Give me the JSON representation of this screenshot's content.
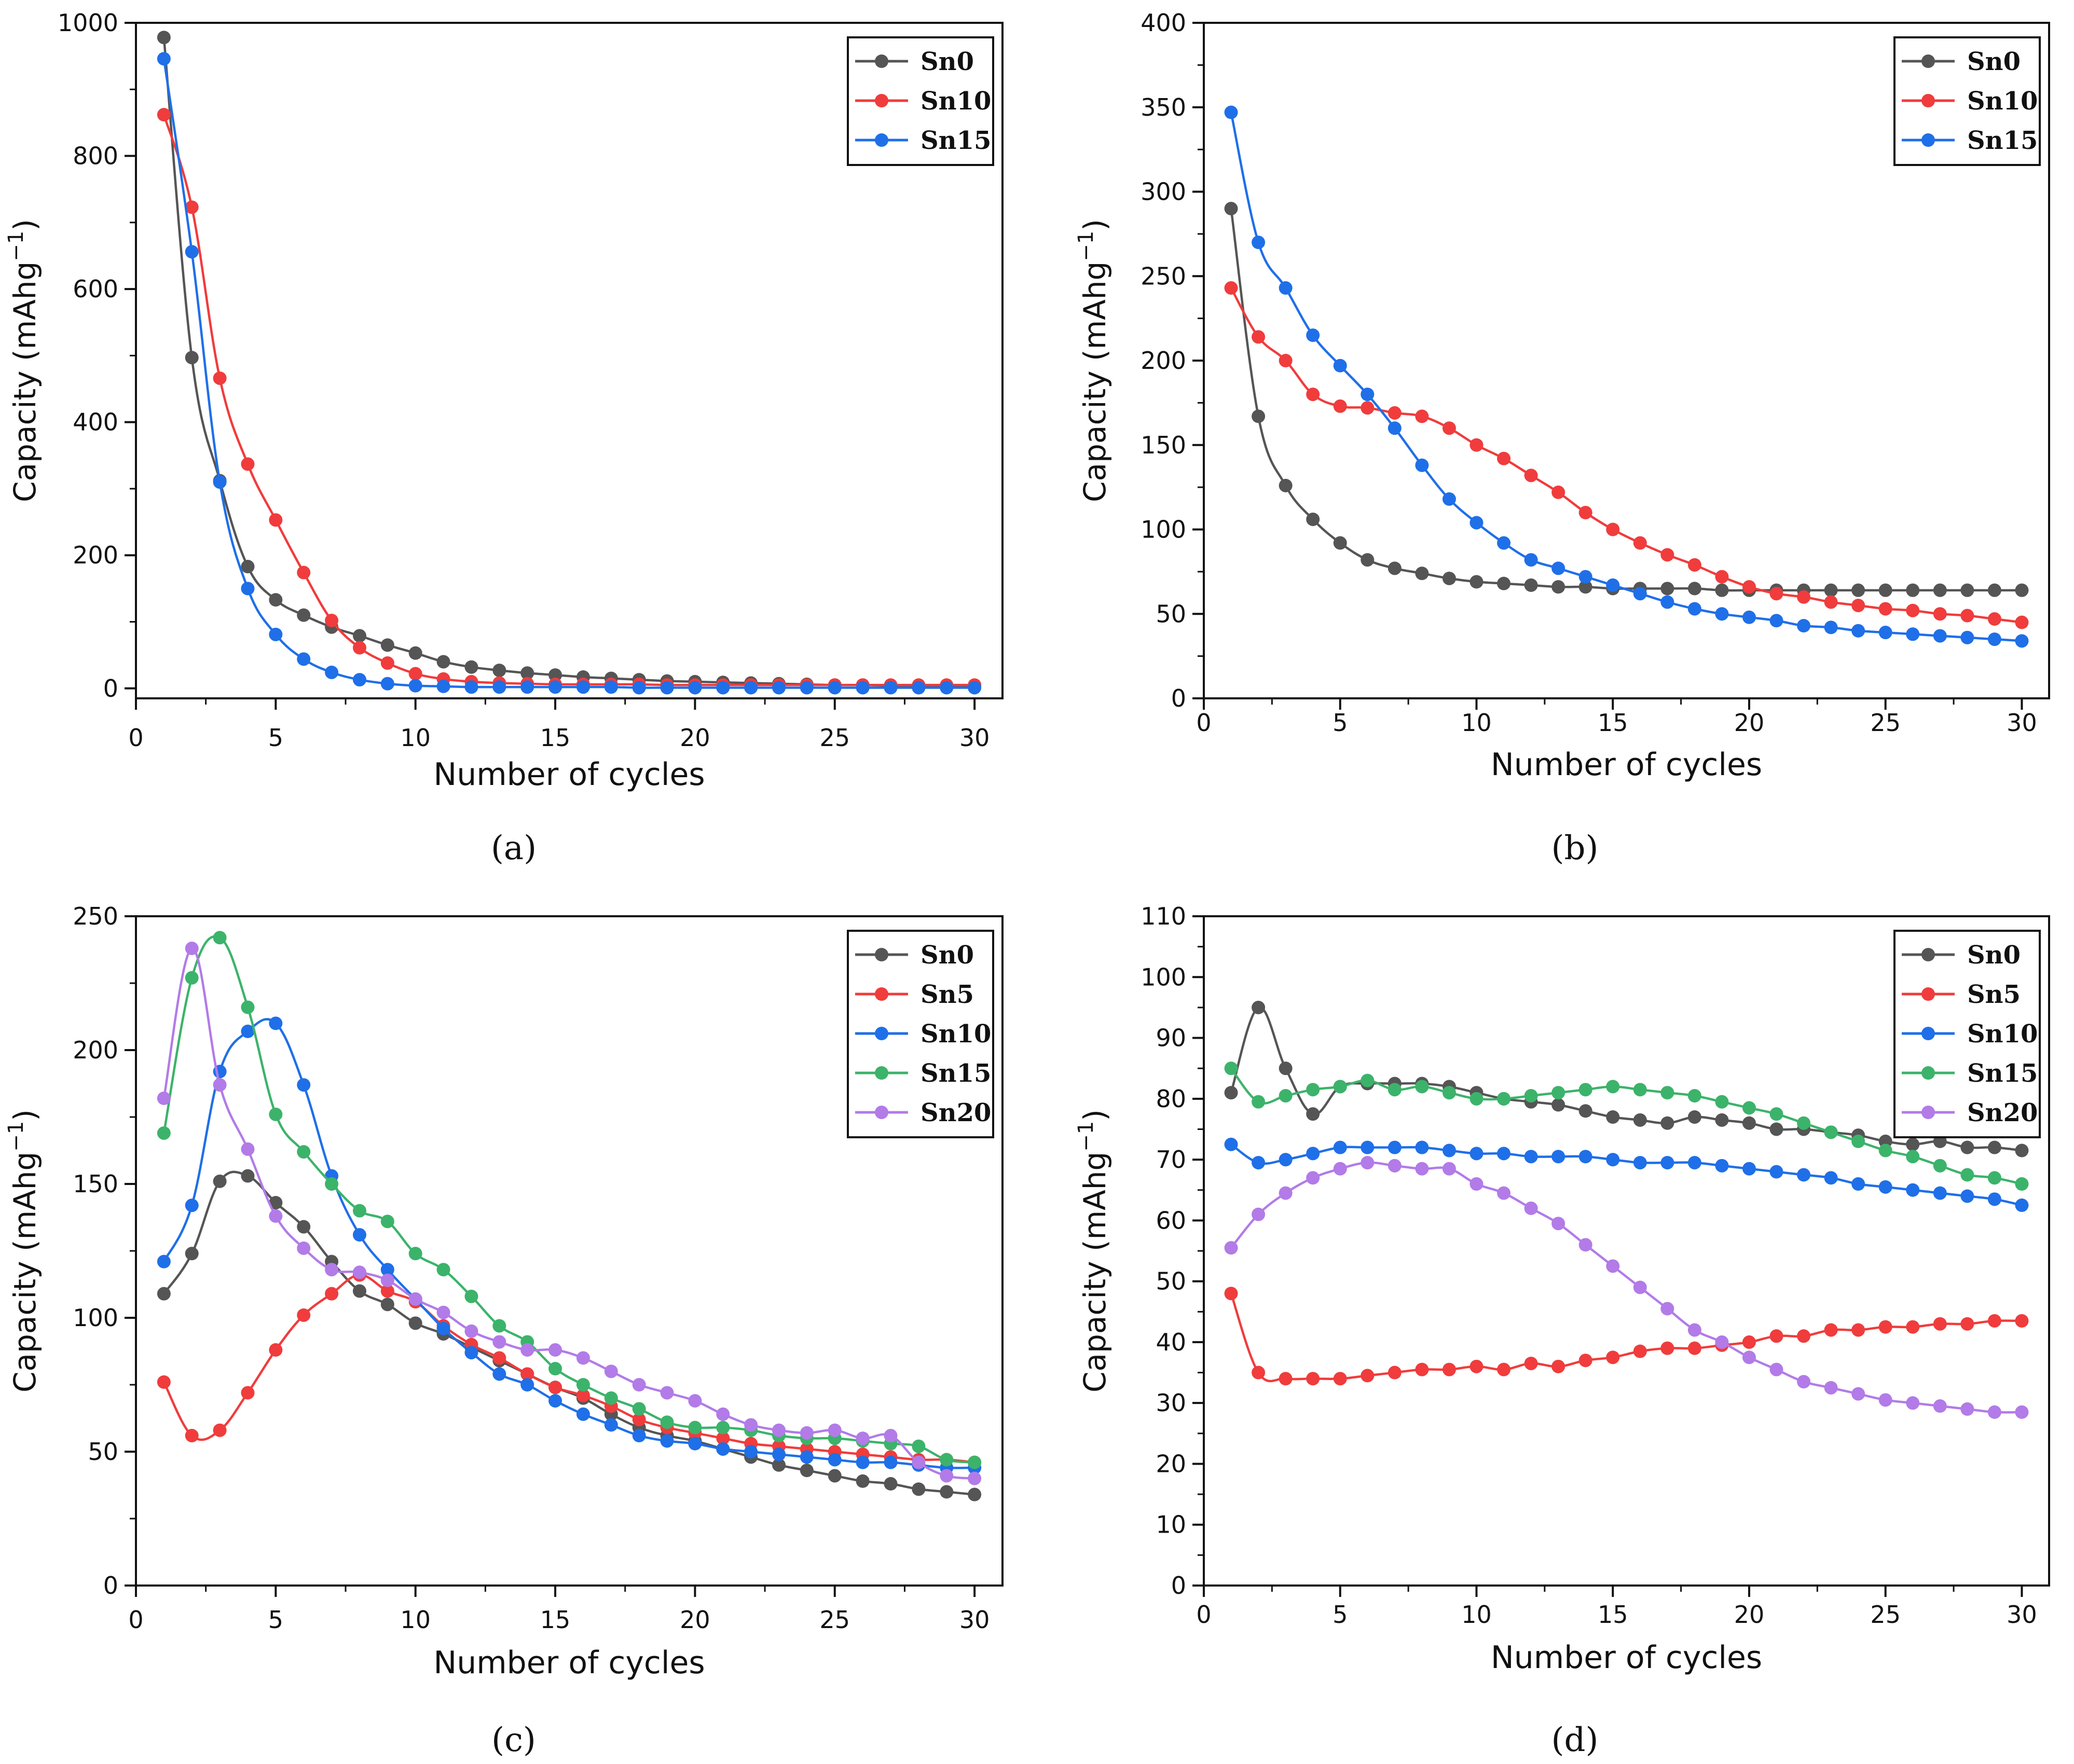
{
  "figure": {
    "panel_labels": [
      "(a)",
      "(b)",
      "(c)",
      "(d)"
    ]
  },
  "chart_data": [
    {
      "id": "a",
      "type": "line",
      "panel_label": "(a)",
      "xlabel": "Number of cycles",
      "ylabel": "Capacity (mAhg",
      "ylabel_sup": "−1",
      "ylabel_close": ")",
      "xlim": [
        0,
        31
      ],
      "ylim": [
        -15,
        1000
      ],
      "xticks": [
        0,
        5,
        10,
        15,
        20,
        25,
        30
      ],
      "yticks": [
        0,
        200,
        400,
        600,
        800,
        1000
      ],
      "legend_position": "top-right",
      "series": [
        {
          "name": "Sn0",
          "color": "#555555",
          "values": [
            978,
            497,
            312,
            183,
            133,
            110,
            92,
            79,
            65,
            53,
            40,
            32,
            27,
            23,
            20,
            17,
            15,
            13,
            11,
            10,
            9,
            8,
            7,
            6,
            5,
            5,
            4,
            4,
            4,
            4
          ]
        },
        {
          "name": "Sn10",
          "color": "#f03c3c",
          "values": [
            862,
            723,
            466,
            337,
            253,
            174,
            102,
            61,
            38,
            22,
            14,
            10,
            8,
            7,
            6,
            6,
            6,
            6,
            5,
            5,
            5,
            5,
            5,
            5,
            5,
            5,
            5,
            5,
            5,
            5
          ]
        },
        {
          "name": "Sn15",
          "color": "#1f6fe8",
          "values": [
            946,
            656,
            310,
            150,
            81,
            44,
            24,
            13,
            7,
            4,
            3,
            2,
            2,
            2,
            2,
            2,
            2,
            1,
            1,
            1,
            1,
            1,
            1,
            1,
            1,
            1,
            1,
            1,
            1,
            1
          ]
        }
      ]
    },
    {
      "id": "b",
      "type": "line",
      "panel_label": "(b)",
      "xlabel": "Number of cycles",
      "ylabel": "Capacity (mAhg",
      "ylabel_sup": "−1",
      "ylabel_close": ")",
      "xlim": [
        0,
        31
      ],
      "ylim": [
        0,
        400
      ],
      "xticks": [
        0,
        5,
        10,
        15,
        20,
        25,
        30
      ],
      "yticks": [
        0,
        50,
        100,
        150,
        200,
        250,
        300,
        350,
        400
      ],
      "legend_position": "top-right",
      "series": [
        {
          "name": "Sn0",
          "color": "#555555",
          "values": [
            290,
            167,
            126,
            106,
            92,
            82,
            77,
            74,
            71,
            69,
            68,
            67,
            66,
            66,
            65,
            65,
            65,
            65,
            64,
            64,
            64,
            64,
            64,
            64,
            64,
            64,
            64,
            64,
            64,
            64
          ]
        },
        {
          "name": "Sn10",
          "color": "#f03c3c",
          "values": [
            243,
            214,
            200,
            180,
            173,
            172,
            169,
            167,
            160,
            150,
            142,
            132,
            122,
            110,
            100,
            92,
            85,
            79,
            72,
            66,
            62,
            60,
            57,
            55,
            53,
            52,
            50,
            49,
            47,
            45
          ]
        },
        {
          "name": "Sn15",
          "color": "#1f6fe8",
          "values": [
            347,
            270,
            243,
            215,
            197,
            180,
            160,
            138,
            118,
            104,
            92,
            82,
            77,
            72,
            67,
            62,
            57,
            53,
            50,
            48,
            46,
            43,
            42,
            40,
            39,
            38,
            37,
            36,
            35,
            34
          ]
        }
      ]
    },
    {
      "id": "c",
      "type": "line",
      "panel_label": "(c)",
      "xlabel": "Number of cycles",
      "ylabel": "Capacity (mAhg",
      "ylabel_sup": "−1",
      "ylabel_close": ")",
      "xlim": [
        0,
        31
      ],
      "ylim": [
        0,
        250
      ],
      "xticks": [
        0,
        5,
        10,
        15,
        20,
        25,
        30
      ],
      "yticks": [
        0,
        50,
        100,
        150,
        200,
        250
      ],
      "legend_position": "top-right",
      "series": [
        {
          "name": "Sn0",
          "color": "#555555",
          "values": [
            109,
            124,
            151,
            153,
            143,
            134,
            121,
            110,
            105,
            98,
            94,
            89,
            84,
            79,
            74,
            70,
            64,
            59,
            56,
            54,
            51,
            48,
            45,
            43,
            41,
            39,
            38,
            36,
            35,
            34
          ]
        },
        {
          "name": "Sn5",
          "color": "#f03c3c",
          "values": [
            76,
            56,
            58,
            72,
            88,
            101,
            109,
            116,
            110,
            106,
            97,
            90,
            85,
            79,
            74,
            71,
            67,
            62,
            59,
            57,
            55,
            53,
            52,
            51,
            50,
            49,
            48,
            47,
            47,
            46
          ]
        },
        {
          "name": "Sn10",
          "color": "#1f6fe8",
          "values": [
            121,
            142,
            192,
            207,
            210,
            187,
            153,
            131,
            118,
            107,
            96,
            87,
            79,
            75,
            69,
            64,
            60,
            56,
            54,
            53,
            51,
            50,
            49,
            48,
            47,
            46,
            46,
            45,
            44,
            44
          ]
        },
        {
          "name": "Sn15",
          "color": "#3cb36a",
          "values": [
            169,
            227,
            242,
            216,
            176,
            162,
            150,
            140,
            136,
            124,
            118,
            108,
            97,
            91,
            81,
            75,
            70,
            66,
            61,
            59,
            59,
            58,
            56,
            55,
            55,
            54,
            53,
            52,
            47,
            46
          ]
        },
        {
          "name": "Sn20",
          "color": "#b27be8",
          "values": [
            182,
            238,
            187,
            163,
            138,
            126,
            118,
            117,
            114,
            107,
            102,
            95,
            91,
            88,
            88,
            85,
            80,
            75,
            72,
            69,
            64,
            60,
            58,
            57,
            58,
            55,
            56,
            46,
            41,
            40
          ]
        }
      ]
    },
    {
      "id": "d",
      "type": "line",
      "panel_label": "(d)",
      "xlabel": "Number of cycles",
      "ylabel": "Capacity (mAhg",
      "ylabel_sup": "−1",
      "ylabel_close": ")",
      "xlim": [
        0,
        31
      ],
      "ylim": [
        0,
        110
      ],
      "xticks": [
        0,
        5,
        10,
        15,
        20,
        25,
        30
      ],
      "yticks": [
        0,
        10,
        20,
        30,
        40,
        50,
        60,
        70,
        80,
        90,
        100,
        110
      ],
      "legend_position": "top-right",
      "series": [
        {
          "name": "Sn0",
          "color": "#555555",
          "values": [
            81,
            95,
            85,
            77.5,
            82,
            82.5,
            82.5,
            82.5,
            82,
            81,
            80,
            79.5,
            79,
            78,
            77,
            76.5,
            76,
            77,
            76.5,
            76,
            75,
            75,
            74.5,
            74,
            73,
            72.5,
            73,
            72,
            72,
            71.5
          ]
        },
        {
          "name": "Sn5",
          "color": "#f03c3c",
          "values": [
            48,
            35,
            34,
            34,
            34,
            34.5,
            35,
            35.5,
            35.5,
            36,
            35.5,
            36.5,
            36,
            37,
            37.5,
            38.5,
            39,
            39,
            39.5,
            40,
            41,
            41,
            42,
            42,
            42.5,
            42.5,
            43,
            43,
            43.5,
            43.5
          ]
        },
        {
          "name": "Sn10",
          "color": "#1f6fe8",
          "values": [
            72.5,
            69.5,
            70,
            71,
            72,
            72,
            72,
            72,
            71.5,
            71,
            71,
            70.5,
            70.5,
            70.5,
            70,
            69.5,
            69.5,
            69.5,
            69,
            68.5,
            68,
            67.5,
            67,
            66,
            65.5,
            65,
            64.5,
            64,
            63.5,
            62.5
          ]
        },
        {
          "name": "Sn15",
          "color": "#3cb36a",
          "values": [
            85,
            79.5,
            80.5,
            81.5,
            82,
            83,
            81.5,
            82,
            81,
            80,
            80,
            80.5,
            81,
            81.5,
            82,
            81.5,
            81,
            80.5,
            79.5,
            78.5,
            77.5,
            76,
            74.5,
            73,
            71.5,
            70.5,
            69,
            67.5,
            67,
            66
          ]
        },
        {
          "name": "Sn20",
          "color": "#b27be8",
          "values": [
            55.5,
            61,
            64.5,
            67,
            68.5,
            69.5,
            69,
            68.5,
            68.5,
            66,
            64.5,
            62,
            59.5,
            56,
            52.5,
            49,
            45.5,
            42,
            40,
            37.5,
            35.5,
            33.5,
            32.5,
            31.5,
            30.5,
            30,
            29.5,
            29,
            28.5,
            28.5
          ]
        }
      ]
    }
  ]
}
